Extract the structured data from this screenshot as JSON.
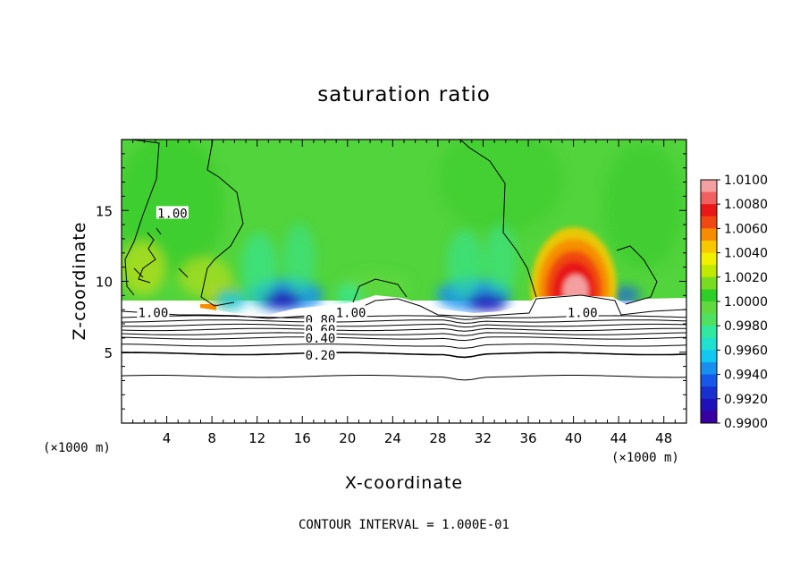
{
  "chart_data": {
    "type": "heatmap",
    "title": "saturation ratio",
    "xlabel": "X-coordinate",
    "ylabel": "Z-coordinate",
    "x_unit_left": "(×1000 m)",
    "x_unit_right": "(×1000 m)",
    "footer": "CONTOUR INTERVAL = 1.000E-01",
    "xlim": [
      0,
      50
    ],
    "ylim": [
      0,
      20
    ],
    "x_ticks": [
      4,
      8,
      12,
      16,
      20,
      24,
      28,
      32,
      36,
      40,
      44,
      48
    ],
    "y_ticks": [
      5,
      10,
      15
    ],
    "colorbar": {
      "min": 0.99,
      "max": 1.01,
      "step": 0.001,
      "labels": [
        "1.0100",
        "1.0080",
        "1.0060",
        "1.0040",
        "1.0020",
        "1.0000",
        "0.9980",
        "0.9960",
        "0.9940",
        "0.9920",
        "0.9900"
      ],
      "colors": [
        "#f4a0a0",
        "#f06060",
        "#e81818",
        "#f04810",
        "#f88c00",
        "#f8c800",
        "#f0f000",
        "#c0e800",
        "#78dc20",
        "#2ed028",
        "#60d840",
        "#50e060",
        "#30e8a0",
        "#20e0d0",
        "#10c8f0",
        "#1890f0",
        "#1858e8",
        "#1830d0",
        "#2010b8",
        "#3800a0"
      ]
    },
    "contour_labels": [
      {
        "text": "1.00",
        "x": 2.8,
        "y": 7.8
      },
      {
        "text": "1.00",
        "x": 4.5,
        "y": 14.8
      },
      {
        "text": "1.00",
        "x": 20.3,
        "y": 7.8
      },
      {
        "text": "1.00",
        "x": 40.8,
        "y": 7.8
      },
      {
        "text": "0.80",
        "x": 17.6,
        "y": 7.3
      },
      {
        "text": "0.60",
        "x": 17.6,
        "y": 6.6
      },
      {
        "text": "0.40",
        "x": 17.6,
        "y": 6.0
      },
      {
        "text": "0.20",
        "x": 17.6,
        "y": 4.8
      }
    ],
    "lower_contours_z": [
      3.3,
      4.9,
      5.5,
      6.0,
      6.3,
      6.6,
      6.9,
      7.2,
      7.5
    ],
    "grid": false
  }
}
